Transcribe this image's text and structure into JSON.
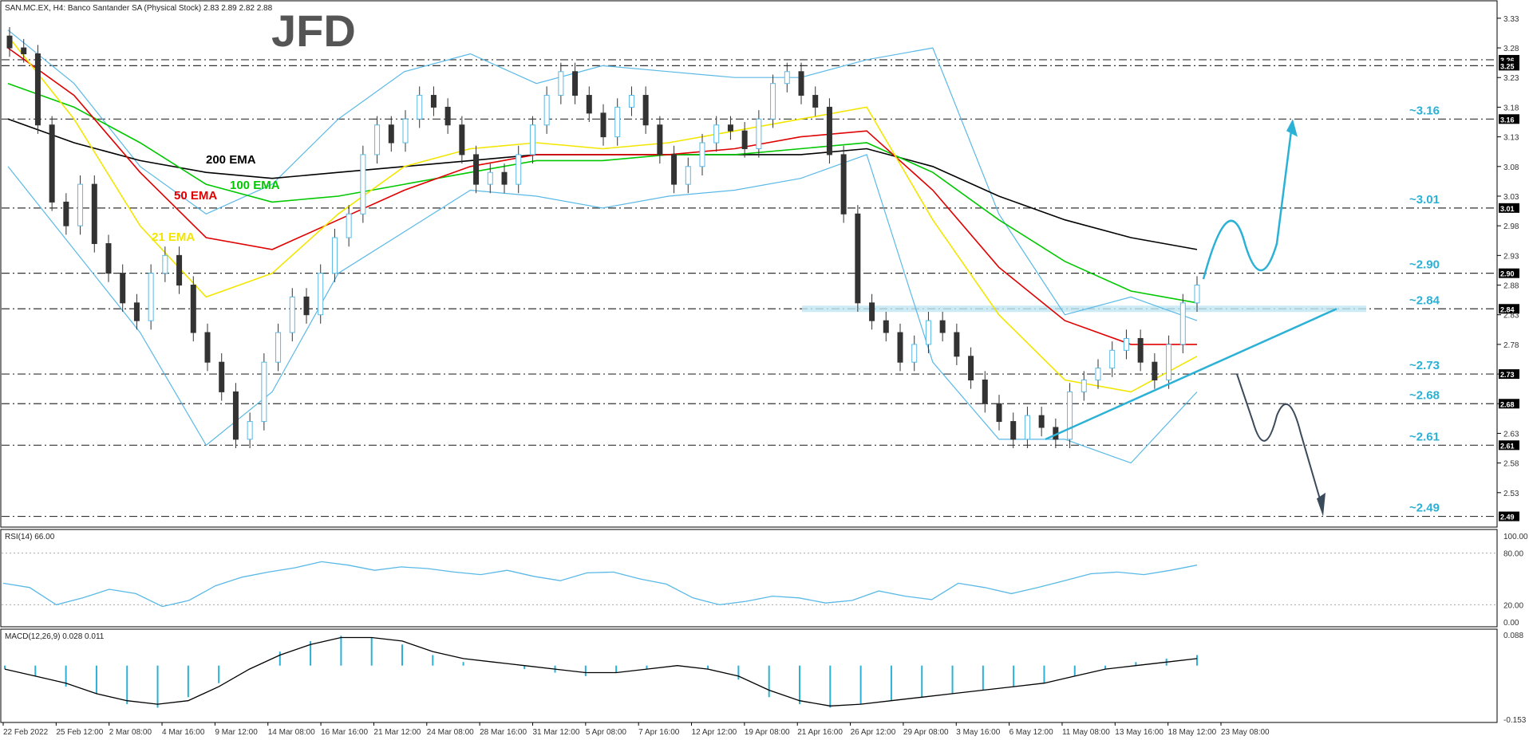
{
  "header": {
    "symbol_line": "SAN.MC.EX, H4:  Banco Santander SA (Physical Stock)  2.83 2.89 2.82 2.88"
  },
  "logo": {
    "text": "JFD"
  },
  "colors": {
    "ema200": "#000000",
    "ema100": "#00c800",
    "ema50": "#e00000",
    "ema21": "#f2e600",
    "bollinger": "#5ab9e6",
    "accent": "#2bb1d6",
    "bear_path": "#3b4a5a",
    "bull_candle": "#ffffff",
    "bear_candle": "#333333"
  },
  "ema_labels": [
    {
      "key": "ema200",
      "text": "200 EMA"
    },
    {
      "key": "ema100",
      "text": "100 EMA"
    },
    {
      "key": "ema50",
      "text": "50 EMA"
    },
    {
      "key": "ema21",
      "text": "21 EMA"
    }
  ],
  "chart_data": {
    "type": "candlestick",
    "price_axis": {
      "ylim": [
        2.48,
        3.35
      ],
      "ticks": [
        "3.33",
        "3.28",
        "3.23",
        "3.18",
        "3.13",
        "3.08",
        "3.03",
        "2.98",
        "2.93",
        "2.88",
        "2.83",
        "2.78",
        "2.73",
        "2.68",
        "2.63",
        "2.58",
        "2.53"
      ]
    },
    "price_tick_values": [
      3.33,
      3.28,
      3.23,
      3.18,
      3.13,
      3.08,
      3.03,
      2.98,
      2.93,
      2.88,
      2.83,
      2.78,
      2.73,
      2.68,
      2.63,
      2.58,
      2.53
    ],
    "x_labels": [
      "22 Feb 2022",
      "25 Feb 12:00",
      "2 Mar 08:00",
      "4 Mar 16:00",
      "9 Mar 12:00",
      "14 Mar 08:00",
      "16 Mar 16:00",
      "21 Mar 12:00",
      "24 Mar 08:00",
      "28 Mar 16:00",
      "31 Mar 12:00",
      "5 Apr 08:00",
      "7 Apr 16:00",
      "12 Apr 12:00",
      "19 Apr 08:00",
      "21 Apr 16:00",
      "26 Apr 12:00",
      "29 Apr 08:00",
      "3 May 16:00",
      "6 May 12:00",
      "11 May 08:00",
      "13 May 16:00",
      "18 May 12:00",
      "23 May 08:00"
    ],
    "levels": [
      {
        "value": 3.26,
        "box": "3.26",
        "label": ""
      },
      {
        "value": 3.25,
        "box": "3.25",
        "label": ""
      },
      {
        "value": 3.16,
        "box": "3.16",
        "label": "~3.16"
      },
      {
        "value": 3.01,
        "box": "3.01",
        "label": "~3.01"
      },
      {
        "value": 2.9,
        "box": "2.90",
        "label": "~2.90"
      },
      {
        "value": 2.84,
        "box": "2.84",
        "label": "~2.84"
      },
      {
        "value": 2.73,
        "box": "2.73",
        "label": "~2.73"
      },
      {
        "value": 2.68,
        "box": "2.68",
        "label": "~2.68"
      },
      {
        "value": 2.61,
        "box": "2.61",
        "label": "~2.61"
      },
      {
        "value": 2.49,
        "box": "2.49",
        "label": "~2.49"
      }
    ],
    "candles": [
      3.28,
      3.27,
      3.15,
      3.02,
      2.98,
      3.05,
      2.95,
      2.9,
      2.85,
      2.82,
      2.9,
      2.93,
      2.88,
      2.8,
      2.75,
      2.7,
      2.62,
      2.65,
      2.75,
      2.8,
      2.86,
      2.83,
      2.9,
      2.96,
      3.0,
      3.1,
      3.15,
      3.12,
      3.16,
      3.2,
      3.18,
      3.15,
      3.1,
      3.05,
      3.07,
      3.05,
      3.1,
      3.15,
      3.2,
      3.24,
      3.2,
      3.17,
      3.13,
      3.18,
      3.2,
      3.15,
      3.1,
      3.05,
      3.08,
      3.12,
      3.15,
      3.14,
      3.11,
      3.16,
      3.22,
      3.24,
      3.2,
      3.18,
      3.1,
      3.0,
      2.85,
      2.82,
      2.8,
      2.75,
      2.78,
      2.82,
      2.8,
      2.76,
      2.72,
      2.68,
      2.65,
      2.62,
      2.66,
      2.64,
      2.62,
      2.7,
      2.72,
      2.74,
      2.77,
      2.79,
      2.75,
      2.72,
      2.78,
      2.85,
      2.88
    ],
    "ema200": [
      3.16,
      3.12,
      3.09,
      3.07,
      3.06,
      3.07,
      3.08,
      3.09,
      3.1,
      3.1,
      3.1,
      3.1,
      3.1,
      3.11,
      3.08,
      3.03,
      2.99,
      2.96,
      2.94
    ],
    "ema100": [
      3.22,
      3.18,
      3.12,
      3.05,
      3.02,
      3.03,
      3.05,
      3.07,
      3.09,
      3.09,
      3.1,
      3.1,
      3.11,
      3.12,
      3.07,
      2.99,
      2.92,
      2.87,
      2.85
    ],
    "ema50": [
      3.28,
      3.2,
      3.07,
      2.96,
      2.94,
      2.99,
      3.04,
      3.08,
      3.1,
      3.1,
      3.1,
      3.11,
      3.13,
      3.14,
      3.04,
      2.91,
      2.82,
      2.78,
      2.78
    ],
    "ema21": [
      3.3,
      3.16,
      2.98,
      2.86,
      2.9,
      3.0,
      3.08,
      3.11,
      3.12,
      3.11,
      3.12,
      3.14,
      3.16,
      3.18,
      2.99,
      2.83,
      2.72,
      2.7,
      2.76
    ],
    "bb_upper": [
      3.31,
      3.22,
      3.08,
      3.0,
      3.05,
      3.16,
      3.24,
      3.27,
      3.22,
      3.25,
      3.24,
      3.23,
      3.23,
      3.26,
      3.28,
      3.0,
      2.83,
      2.86,
      2.82
    ],
    "bb_lower": [
      3.08,
      2.94,
      2.8,
      2.61,
      2.7,
      2.9,
      2.97,
      3.04,
      3.03,
      3.01,
      3.03,
      3.04,
      3.06,
      3.1,
      2.75,
      2.62,
      2.62,
      2.58,
      2.7
    ],
    "rsi": {
      "label": "RSI(14) 66.00",
      "ticks": [
        "100.00",
        "80.00",
        "20.00",
        "0.00"
      ],
      "tick_values": [
        100,
        80,
        20,
        0
      ],
      "values": [
        45,
        40,
        20,
        28,
        38,
        33,
        18,
        25,
        42,
        52,
        58,
        63,
        70,
        66,
        60,
        64,
        62,
        58,
        55,
        60,
        53,
        48,
        57,
        58,
        50,
        44,
        28,
        20,
        24,
        30,
        28,
        22,
        25,
        36,
        30,
        26,
        45,
        40,
        33,
        40,
        48,
        56,
        58,
        55,
        60,
        66
      ]
    },
    "macd": {
      "label": "MACD(12,26,9) 0.028 0.011",
      "ticks": [
        "0.088",
        "-0.153"
      ],
      "tick_values": [
        0.088,
        -0.153
      ],
      "hist": [
        -0.01,
        -0.03,
        -0.06,
        -0.08,
        -0.11,
        -0.12,
        -0.09,
        -0.05,
        0.0,
        0.04,
        0.07,
        0.085,
        0.08,
        0.06,
        0.03,
        0.01,
        0.0,
        -0.01,
        -0.02,
        -0.03,
        -0.02,
        -0.01,
        0.0,
        -0.01,
        -0.04,
        -0.09,
        -0.11,
        -0.12,
        -0.11,
        -0.1,
        -0.09,
        -0.08,
        -0.07,
        -0.06,
        -0.05,
        -0.03,
        -0.01,
        0.01,
        0.02,
        0.03
      ],
      "signal": [
        -0.01,
        -0.03,
        -0.05,
        -0.08,
        -0.1,
        -0.11,
        -0.1,
        -0.06,
        -0.01,
        0.03,
        0.06,
        0.08,
        0.08,
        0.07,
        0.04,
        0.02,
        0.01,
        0.0,
        -0.01,
        -0.02,
        -0.02,
        -0.01,
        0.0,
        -0.01,
        -0.03,
        -0.07,
        -0.1,
        -0.115,
        -0.11,
        -0.1,
        -0.09,
        -0.08,
        -0.07,
        -0.06,
        -0.05,
        -0.03,
        -0.01,
        0.0,
        0.01,
        0.02
      ]
    }
  }
}
